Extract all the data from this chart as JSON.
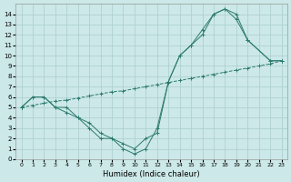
{
  "title": "",
  "xlabel": "Humidex (Indice chaleur)",
  "ylabel": "",
  "xlim": [
    -0.5,
    23.5
  ],
  "ylim": [
    0,
    15
  ],
  "xticks": [
    0,
    1,
    2,
    3,
    4,
    5,
    6,
    7,
    8,
    9,
    10,
    11,
    12,
    13,
    14,
    15,
    16,
    17,
    18,
    19,
    20,
    21,
    22,
    23
  ],
  "yticks": [
    0,
    1,
    2,
    3,
    4,
    5,
    6,
    7,
    8,
    9,
    10,
    11,
    12,
    13,
    14
  ],
  "bg_color": "#cce8e8",
  "line_color": "#2d7b6e",
  "grid_color": "#aacece",
  "line1_x": [
    0,
    1,
    2,
    3,
    4,
    5,
    6,
    7,
    8,
    9,
    10,
    11,
    12,
    13,
    14,
    15,
    16,
    17,
    18,
    19,
    20,
    22,
    23
  ],
  "line1_y": [
    5,
    6,
    6,
    5,
    4.5,
    4,
    3.5,
    2.5,
    2,
    1.5,
    1,
    2,
    2.5,
    7.5,
    10,
    11,
    12,
    14,
    14.5,
    14,
    11.5,
    9.5,
    9.5
  ],
  "line2_x": [
    0,
    1,
    2,
    3,
    4,
    5,
    6,
    7,
    8,
    9,
    10,
    11,
    12,
    13,
    14,
    15,
    16,
    17,
    18,
    19,
    20,
    21,
    22,
    23
  ],
  "line2_y": [
    5,
    5.2,
    5.4,
    5.6,
    5.7,
    5.9,
    6.1,
    6.3,
    6.5,
    6.6,
    6.8,
    7.0,
    7.2,
    7.4,
    7.6,
    7.8,
    8.0,
    8.2,
    8.4,
    8.6,
    8.8,
    9.0,
    9.2,
    9.5
  ],
  "line3_x": [
    0,
    1,
    2,
    3,
    4,
    5,
    6,
    7,
    8,
    9,
    10,
    11,
    12,
    13,
    14,
    15,
    16,
    17,
    18,
    19,
    20,
    22,
    23
  ],
  "line3_y": [
    5,
    6,
    6,
    5,
    5,
    4,
    3,
    2,
    2,
    1,
    0.5,
    1,
    3,
    7.5,
    10,
    11,
    12.5,
    14,
    14.5,
    13.5,
    11.5,
    9.5,
    9.5
  ]
}
